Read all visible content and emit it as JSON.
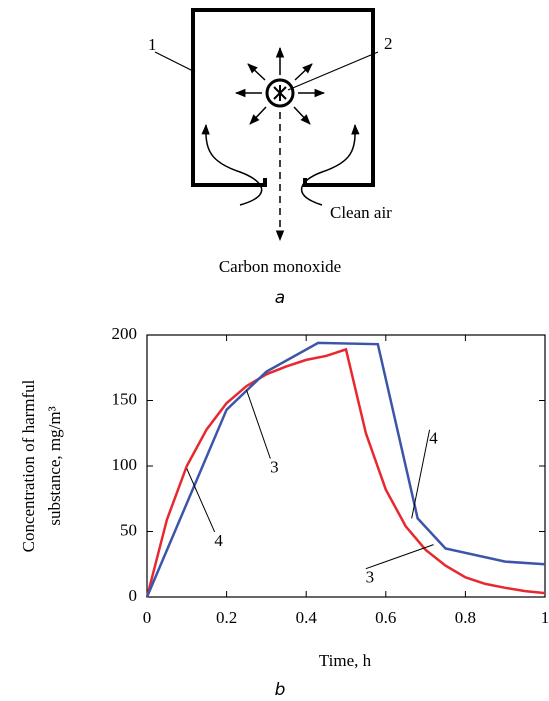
{
  "diagram": {
    "label_box": "1",
    "label_source": "2",
    "clean_air": "Clean air",
    "carbon_monoxide": "Carbon monoxide",
    "caption": "a"
  },
  "chart_data": {
    "type": "line",
    "caption": "b",
    "xlabel": "Time, h",
    "ylabel_lines": [
      "Concentration of harmful",
      "substance, mg/m³"
    ],
    "xlim": [
      0,
      1
    ],
    "xticks": [
      0,
      0.2,
      0.4,
      0.6,
      0.8,
      1
    ],
    "ylim": [
      0,
      200
    ],
    "yticks": [
      0,
      50,
      100,
      150,
      200
    ],
    "series": [
      {
        "color": "#e8282e",
        "x": [
          0,
          0.05,
          0.1,
          0.15,
          0.2,
          0.25,
          0.3,
          0.35,
          0.4,
          0.45,
          0.5,
          0.55,
          0.6,
          0.65,
          0.7,
          0.75,
          0.8,
          0.85,
          0.9,
          0.95,
          1
        ],
        "values": [
          0,
          59,
          100,
          128,
          148,
          161,
          170,
          176,
          181,
          184,
          189,
          125,
          82,
          54,
          36,
          24,
          15,
          10,
          7,
          4.5,
          3
        ]
      },
      {
        "color": "#3d55a8",
        "x": [
          0,
          0.2,
          0.3,
          0.43,
          0.58,
          0.68,
          0.75,
          0.9,
          1
        ],
        "values": [
          0,
          143,
          172,
          194,
          193,
          60,
          37,
          27,
          25
        ]
      }
    ],
    "annotations": [
      "3",
      "4",
      "4",
      "3"
    ]
  }
}
